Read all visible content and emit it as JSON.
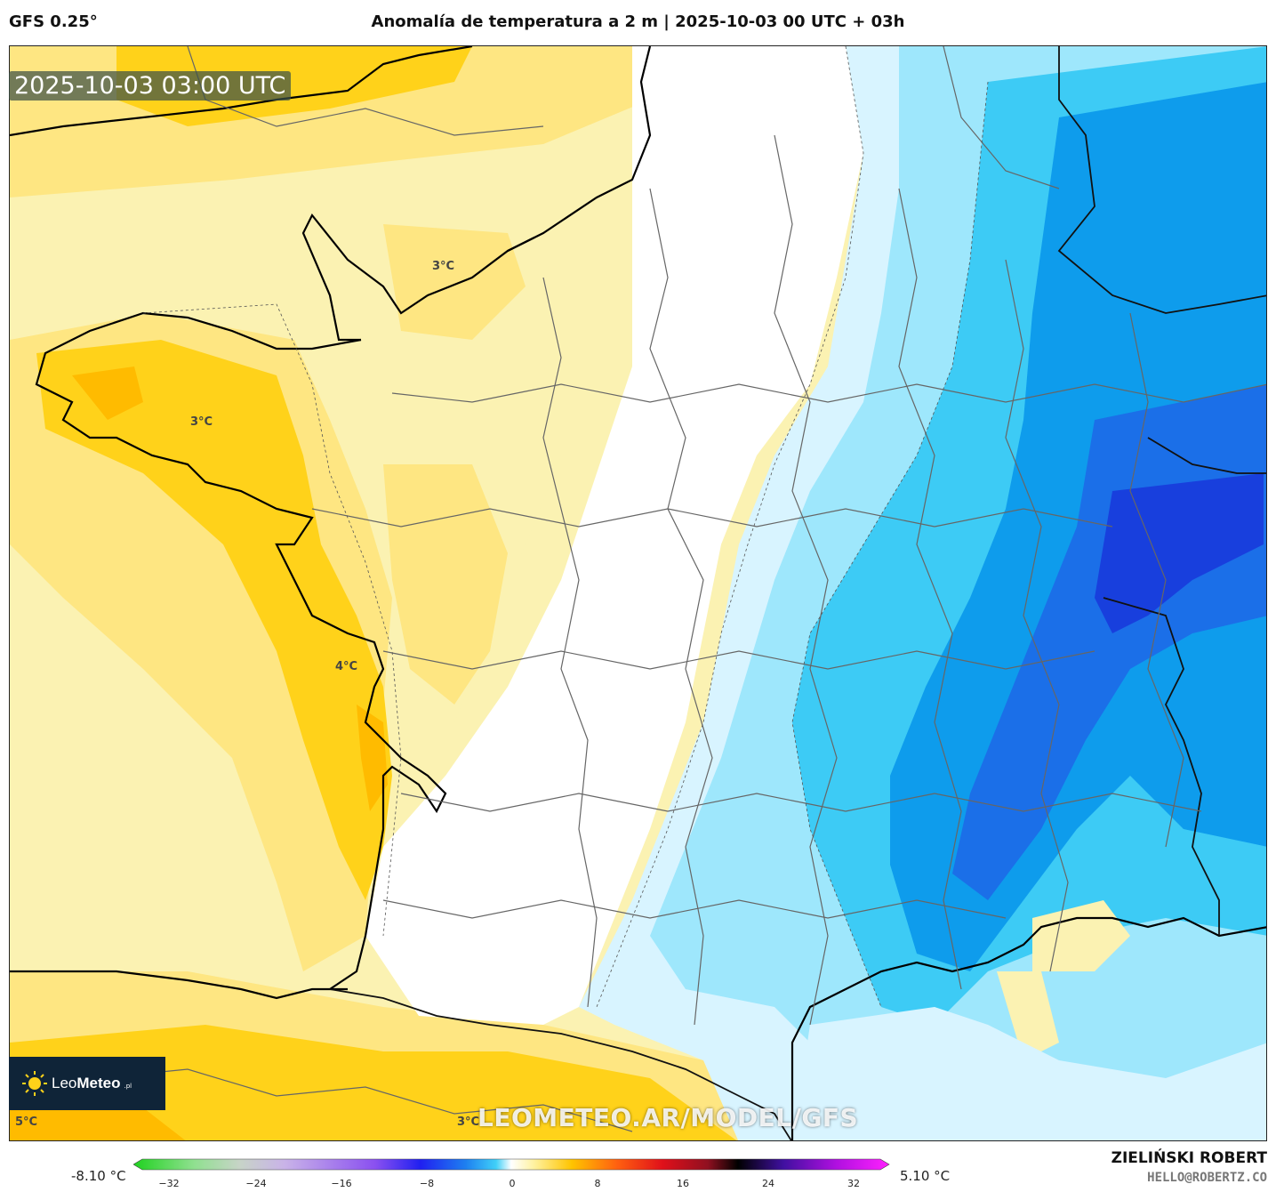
{
  "header": {
    "model": "GFS 0.25°",
    "title": "Anomalía de temperatura a 2 m | 2025-10-03 00 UTC + 03h"
  },
  "map": {
    "timestamp": "2025-10-03 03:00 UTC",
    "watermark": "LEOMETEO.AR/MODEL/GFS",
    "logo": {
      "name_light": "Leo",
      "name_bold": "Meteo",
      "suffix": ".pl"
    },
    "contour_labels": [
      "3°C",
      "3°C",
      "4°C",
      "5°C",
      "3°C"
    ],
    "colors": {
      "ocean": "#fbf2b2",
      "warm_light": "#fbf2b2",
      "warm_mid": "#fee682",
      "warm": "#ffd21a",
      "warm_strong": "#ffbb00",
      "neutral": "#ffffff",
      "cool_light": "#d8f4ff",
      "cool": "#9ee7fc",
      "cool_mid": "#3dcbf5",
      "cold": "#0e9cec",
      "colder": "#1b6fe8",
      "coldest": "#183fdd"
    }
  },
  "colorbar": {
    "min_label": "-8.10 °C",
    "max_label": "5.10 °C",
    "ticks": [
      "−32",
      "−24",
      "−16",
      "−8",
      "0",
      "8",
      "16",
      "24",
      "32"
    ]
  },
  "credits": {
    "author": "ZIELIŃSKI ROBERT",
    "email": "HELLO@ROBERTZ.CO"
  }
}
